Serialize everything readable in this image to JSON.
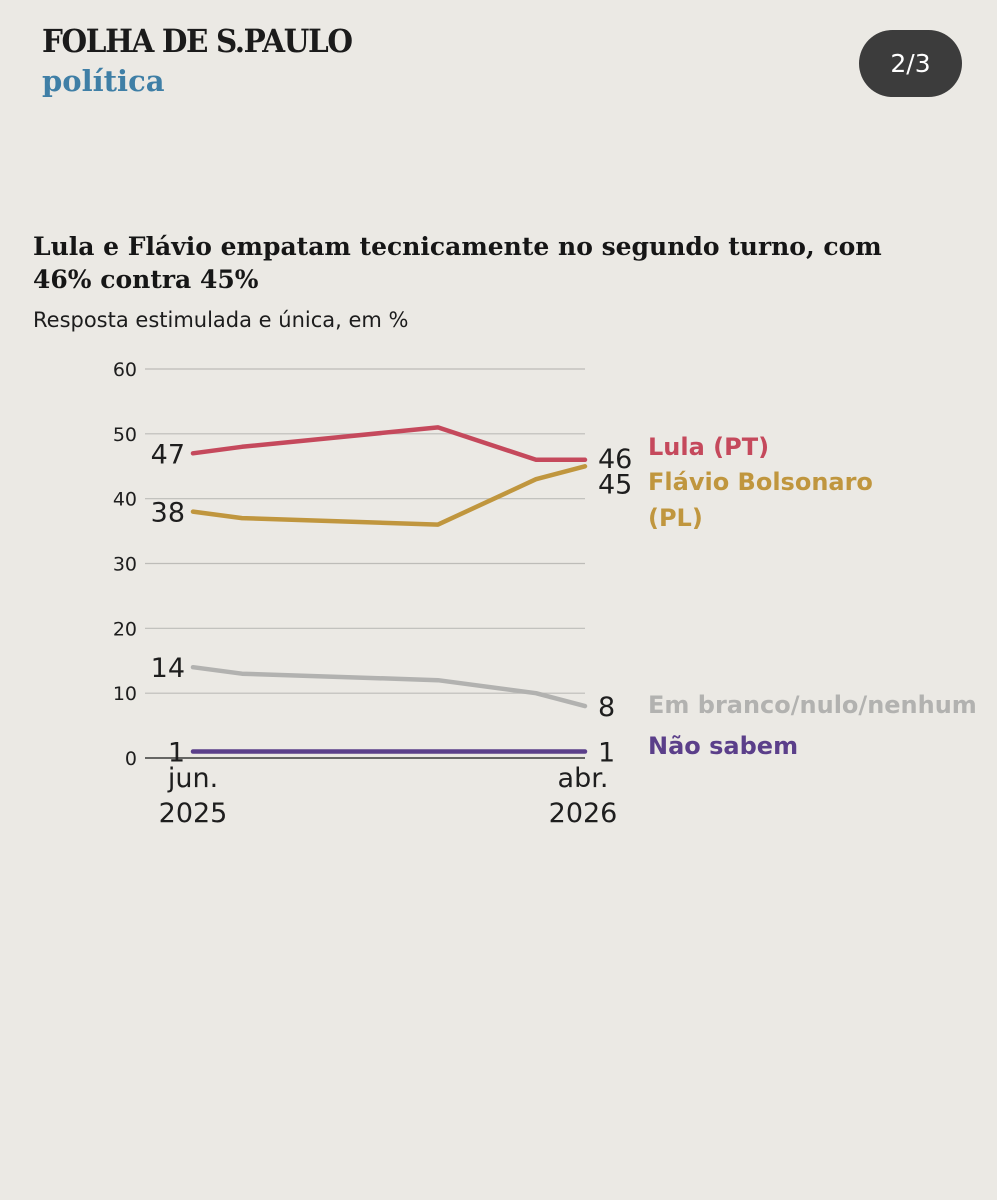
{
  "header": {
    "brand": "FOLHA DE S.PAULO",
    "section": "política",
    "pager": "2/3"
  },
  "chart_data": {
    "type": "line",
    "title": "Lula e Flávio empatam tecnicamente no segundo turno, com 46% contra 45%",
    "subtitle": "Resposta estimulada e única, em %",
    "ylim": [
      0,
      60
    ],
    "yticks": [
      0,
      10,
      20,
      30,
      40,
      50,
      60
    ],
    "ytick_labels": [
      "0",
      "10",
      "20",
      "30",
      "40",
      "50",
      "60"
    ],
    "grid": true,
    "x": [
      0,
      1,
      5,
      7,
      8
    ],
    "xlim": [
      0,
      8
    ],
    "xtick_labels": [
      {
        "x": 0,
        "line1": "jun.",
        "line2": "2025"
      },
      {
        "x": 8,
        "line1": "abr.",
        "line2": "2026"
      }
    ],
    "series": [
      {
        "name": "Lula (PT)",
        "legend_lines": [
          "Lula (PT)"
        ],
        "color": "#c5495c",
        "values": [
          47,
          48,
          51,
          46,
          46
        ],
        "start_label": "47",
        "end_label": "46"
      },
      {
        "name": "Flávio Bolsonaro (PL)",
        "legend_lines": [
          "Flávio Bolsonaro",
          "(PL)"
        ],
        "color": "#c0963e",
        "values": [
          38,
          37,
          36,
          43,
          45
        ],
        "start_label": "38",
        "end_label": "45"
      },
      {
        "name": "Em branco/nulo/nenhum",
        "legend_lines": [
          "Em branco/nulo/nenhum"
        ],
        "color": "#b2b2b0",
        "values": [
          14,
          13,
          12,
          10,
          8
        ],
        "start_label": "14",
        "end_label": "8"
      },
      {
        "name": "Não sabem",
        "legend_lines": [
          "Não sabem"
        ],
        "color": "#5b3f8a",
        "values": [
          1,
          1,
          1,
          1,
          1
        ],
        "start_label": "1",
        "end_label": "1"
      }
    ]
  }
}
